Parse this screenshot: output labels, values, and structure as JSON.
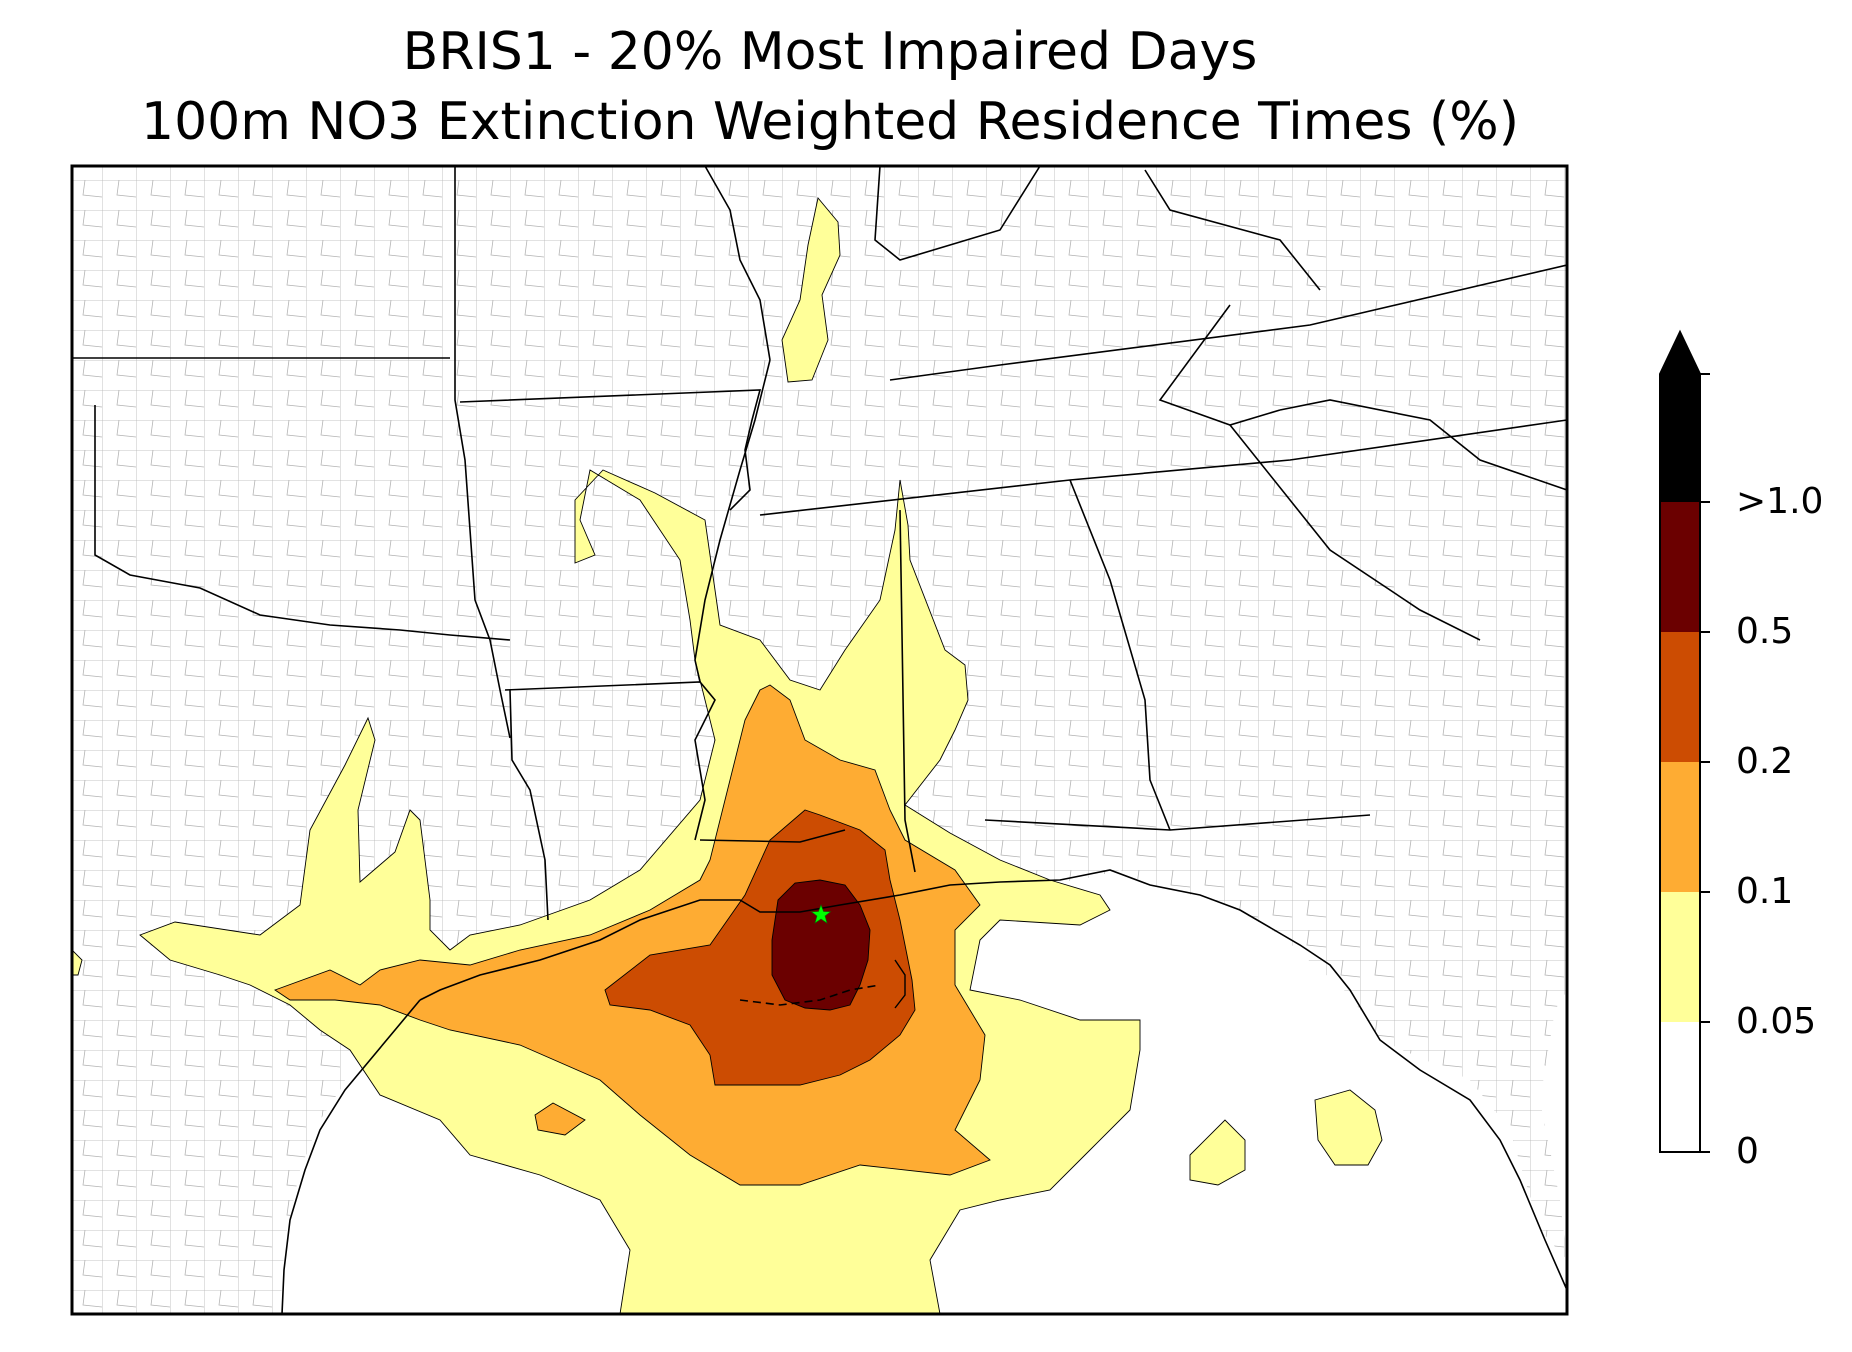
{
  "title": {
    "line1": "BRIS1 - 20% Most Impaired Days",
    "line2": "100m NO3 Extinction Weighted Residence Times (%)"
  },
  "colorbar": {
    "extend": "max",
    "arrow_color": "#000000",
    "bands": [
      {
        "from": 0,
        "to": 0.05,
        "color": "#ffffff"
      },
      {
        "from": 0.05,
        "to": 0.1,
        "color": "#ffff99"
      },
      {
        "from": 0.1,
        "to": 0.2,
        "color": "#feac33"
      },
      {
        "from": 0.2,
        "to": 0.5,
        "color": "#cc4c02"
      },
      {
        "from": 0.5,
        "to": 1.0,
        "color": "#6b0000"
      }
    ],
    "tick_labels": [
      "0",
      "0.05",
      "0.1",
      "0.2",
      "0.5",
      ">1.0"
    ]
  },
  "map": {
    "site_marker": "green-star",
    "colors": {
      "state_border": "#000000",
      "county_border": "#a0a0a0",
      "site": "#00ff00"
    }
  }
}
